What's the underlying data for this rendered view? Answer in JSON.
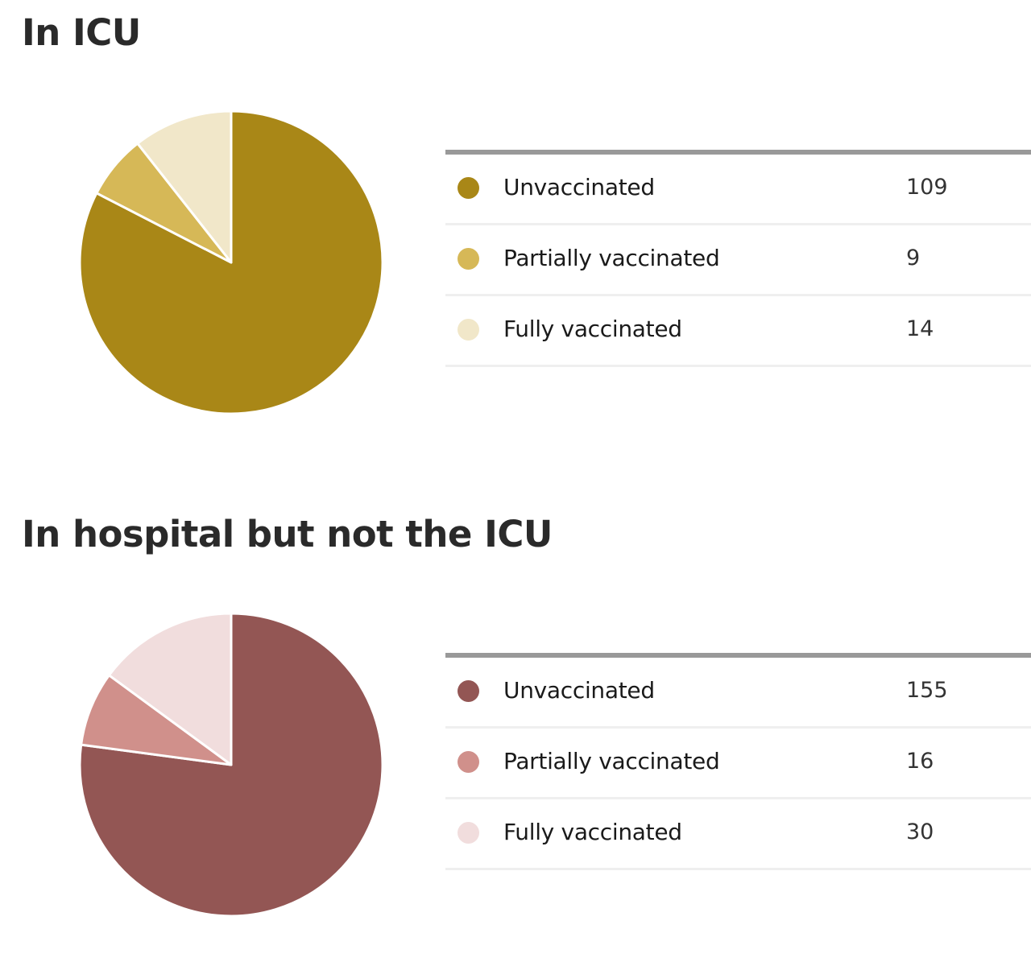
{
  "sections": [
    {
      "title": "In ICU",
      "rows": [
        {
          "label": "Unvaccinated",
          "value": "109",
          "color": "#a98717"
        },
        {
          "label": "Partially vaccinated",
          "value": "9",
          "color": "#d6b857"
        },
        {
          "label": "Fully vaccinated",
          "value": "14",
          "color": "#f1e7c9"
        }
      ]
    },
    {
      "title": "In hospital but not the ICU",
      "rows": [
        {
          "label": "Unvaccinated",
          "value": "155",
          "color": "#935654"
        },
        {
          "label": "Partially vaccinated",
          "value": "16",
          "color": "#d0908b"
        },
        {
          "label": "Fully vaccinated",
          "value": "30",
          "color": "#f1dddd"
        }
      ]
    }
  ],
  "chart_data": [
    {
      "type": "pie",
      "title": "In ICU",
      "categories": [
        "Unvaccinated",
        "Partially vaccinated",
        "Fully vaccinated"
      ],
      "values": [
        109,
        9,
        14
      ],
      "colors": [
        "#a98717",
        "#d6b857",
        "#f1e7c9"
      ],
      "start_angle": "12 o'clock, clockwise",
      "legend_position": "right (table)"
    },
    {
      "type": "pie",
      "title": "In hospital but not the ICU",
      "categories": [
        "Unvaccinated",
        "Partially vaccinated",
        "Fully vaccinated"
      ],
      "values": [
        155,
        16,
        30
      ],
      "colors": [
        "#935654",
        "#d0908b",
        "#f1dddd"
      ],
      "start_angle": "12 o'clock, clockwise",
      "legend_position": "right (table)"
    }
  ]
}
